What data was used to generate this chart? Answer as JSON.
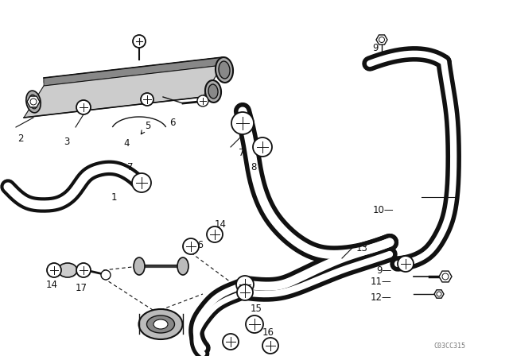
{
  "bg_color": "#ffffff",
  "line_color": "#111111",
  "watermark": "C03CC315",
  "figsize": [
    6.4,
    4.48
  ],
  "dpi": 100
}
